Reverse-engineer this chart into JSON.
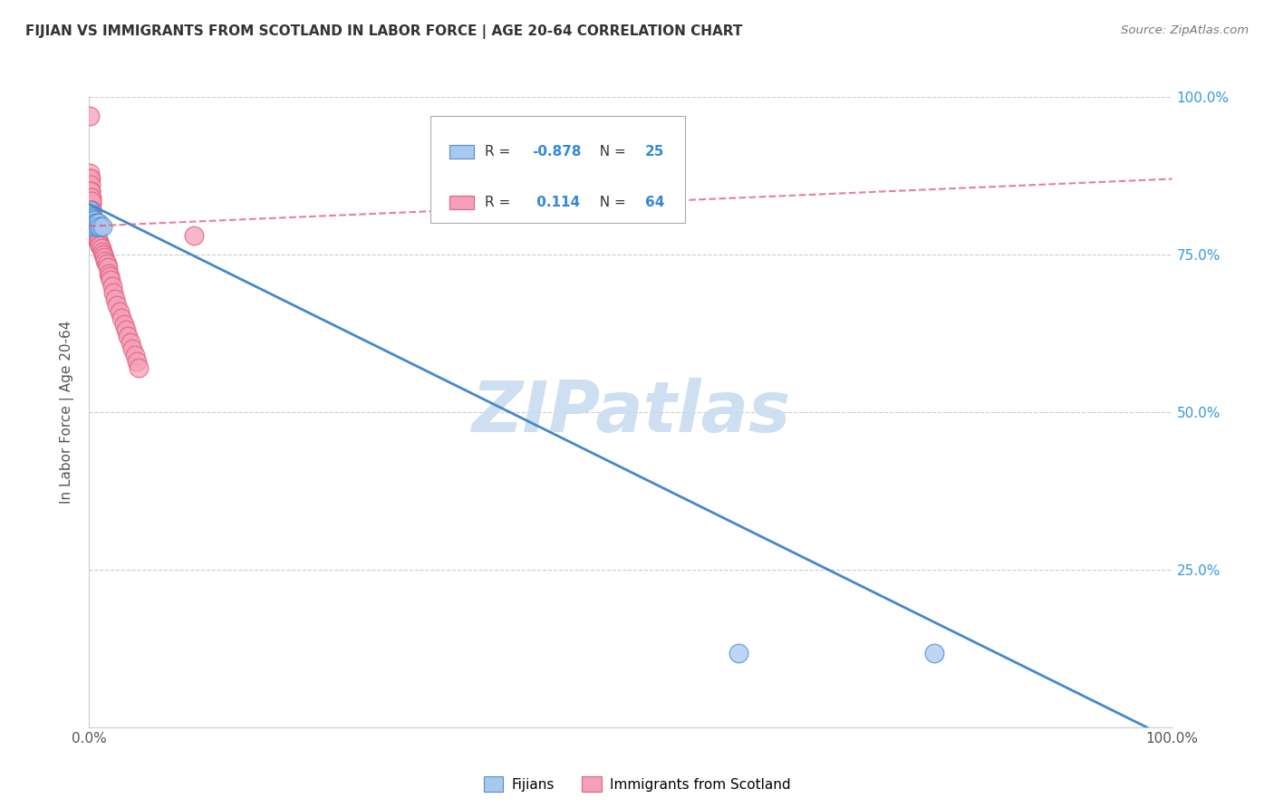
{
  "title": "FIJIAN VS IMMIGRANTS FROM SCOTLAND IN LABOR FORCE | AGE 20-64 CORRELATION CHART",
  "source": "Source: ZipAtlas.com",
  "ylabel": "In Labor Force | Age 20-64",
  "xlim": [
    0,
    1
  ],
  "ylim": [
    0,
    1
  ],
  "xticks": [
    0.0,
    0.25,
    0.5,
    0.75,
    1.0
  ],
  "yticks": [
    0.0,
    0.25,
    0.5,
    0.75,
    1.0
  ],
  "xticklabels": [
    "0.0%",
    "",
    "",
    "",
    "100.0%"
  ],
  "yticklabels_right": [
    "",
    "25.0%",
    "50.0%",
    "75.0%",
    "100.0%"
  ],
  "legend_R1": "-0.878",
  "legend_N1": "25",
  "legend_R2": "0.114",
  "legend_N2": "64",
  "fijians_color": "#A8C8F0",
  "scotland_color": "#F5A0B8",
  "fijians_edge_color": "#5090D0",
  "scotland_edge_color": "#E06080",
  "fijians_line_color": "#4488CC",
  "scotland_line_color": "#E06080",
  "watermark_color": "#C8DCF0",
  "background_color": "#FFFFFF",
  "grid_color": "#CCCCCC",
  "fijians_label": "Fijians",
  "scotland_label": "Immigrants from Scotland",
  "fijians_x": [
    0.0008,
    0.001,
    0.0012,
    0.0015,
    0.0018,
    0.002,
    0.0022,
    0.0025,
    0.0028,
    0.003,
    0.0035,
    0.0038,
    0.0042,
    0.0045,
    0.005,
    0.0055,
    0.006,
    0.0065,
    0.007,
    0.008,
    0.009,
    0.01,
    0.012,
    0.6,
    0.78
  ],
  "fijians_y": [
    0.82,
    0.815,
    0.81,
    0.808,
    0.805,
    0.81,
    0.808,
    0.805,
    0.8,
    0.808,
    0.8,
    0.795,
    0.805,
    0.8,
    0.805,
    0.8,
    0.8,
    0.795,
    0.8,
    0.795,
    0.8,
    0.795,
    0.795,
    0.118,
    0.118
  ],
  "scotland_x": [
    0.0005,
    0.0007,
    0.0008,
    0.001,
    0.001,
    0.0012,
    0.0013,
    0.0015,
    0.0016,
    0.0018,
    0.0019,
    0.002,
    0.0021,
    0.0022,
    0.0024,
    0.0025,
    0.0026,
    0.0028,
    0.003,
    0.0032,
    0.0033,
    0.0035,
    0.0038,
    0.004,
    0.0042,
    0.0045,
    0.0048,
    0.005,
    0.0055,
    0.0058,
    0.006,
    0.0065,
    0.007,
    0.0075,
    0.008,
    0.0085,
    0.009,
    0.0095,
    0.01,
    0.011,
    0.012,
    0.013,
    0.014,
    0.015,
    0.016,
    0.017,
    0.018,
    0.019,
    0.02,
    0.021,
    0.022,
    0.024,
    0.026,
    0.028,
    0.03,
    0.032,
    0.034,
    0.036,
    0.038,
    0.04,
    0.042,
    0.044,
    0.046,
    0.097
  ],
  "scotland_y": [
    0.97,
    0.88,
    0.87,
    0.87,
    0.86,
    0.85,
    0.84,
    0.84,
    0.85,
    0.83,
    0.84,
    0.835,
    0.82,
    0.82,
    0.82,
    0.81,
    0.81,
    0.81,
    0.81,
    0.8,
    0.8,
    0.8,
    0.8,
    0.8,
    0.795,
    0.79,
    0.79,
    0.79,
    0.785,
    0.785,
    0.78,
    0.78,
    0.775,
    0.775,
    0.775,
    0.77,
    0.77,
    0.765,
    0.765,
    0.76,
    0.755,
    0.75,
    0.745,
    0.74,
    0.735,
    0.73,
    0.72,
    0.715,
    0.71,
    0.7,
    0.69,
    0.68,
    0.67,
    0.66,
    0.65,
    0.64,
    0.63,
    0.62,
    0.61,
    0.6,
    0.59,
    0.58,
    0.57,
    0.78
  ],
  "fijian_line_x0": 0.0,
  "fijian_line_y0": 0.83,
  "fijian_line_x1": 1.0,
  "fijian_line_y1": -0.02,
  "scotland_line_x0": 0.0,
  "scotland_line_y0": 0.795,
  "scotland_line_x1": 1.0,
  "scotland_line_y1": 0.87
}
